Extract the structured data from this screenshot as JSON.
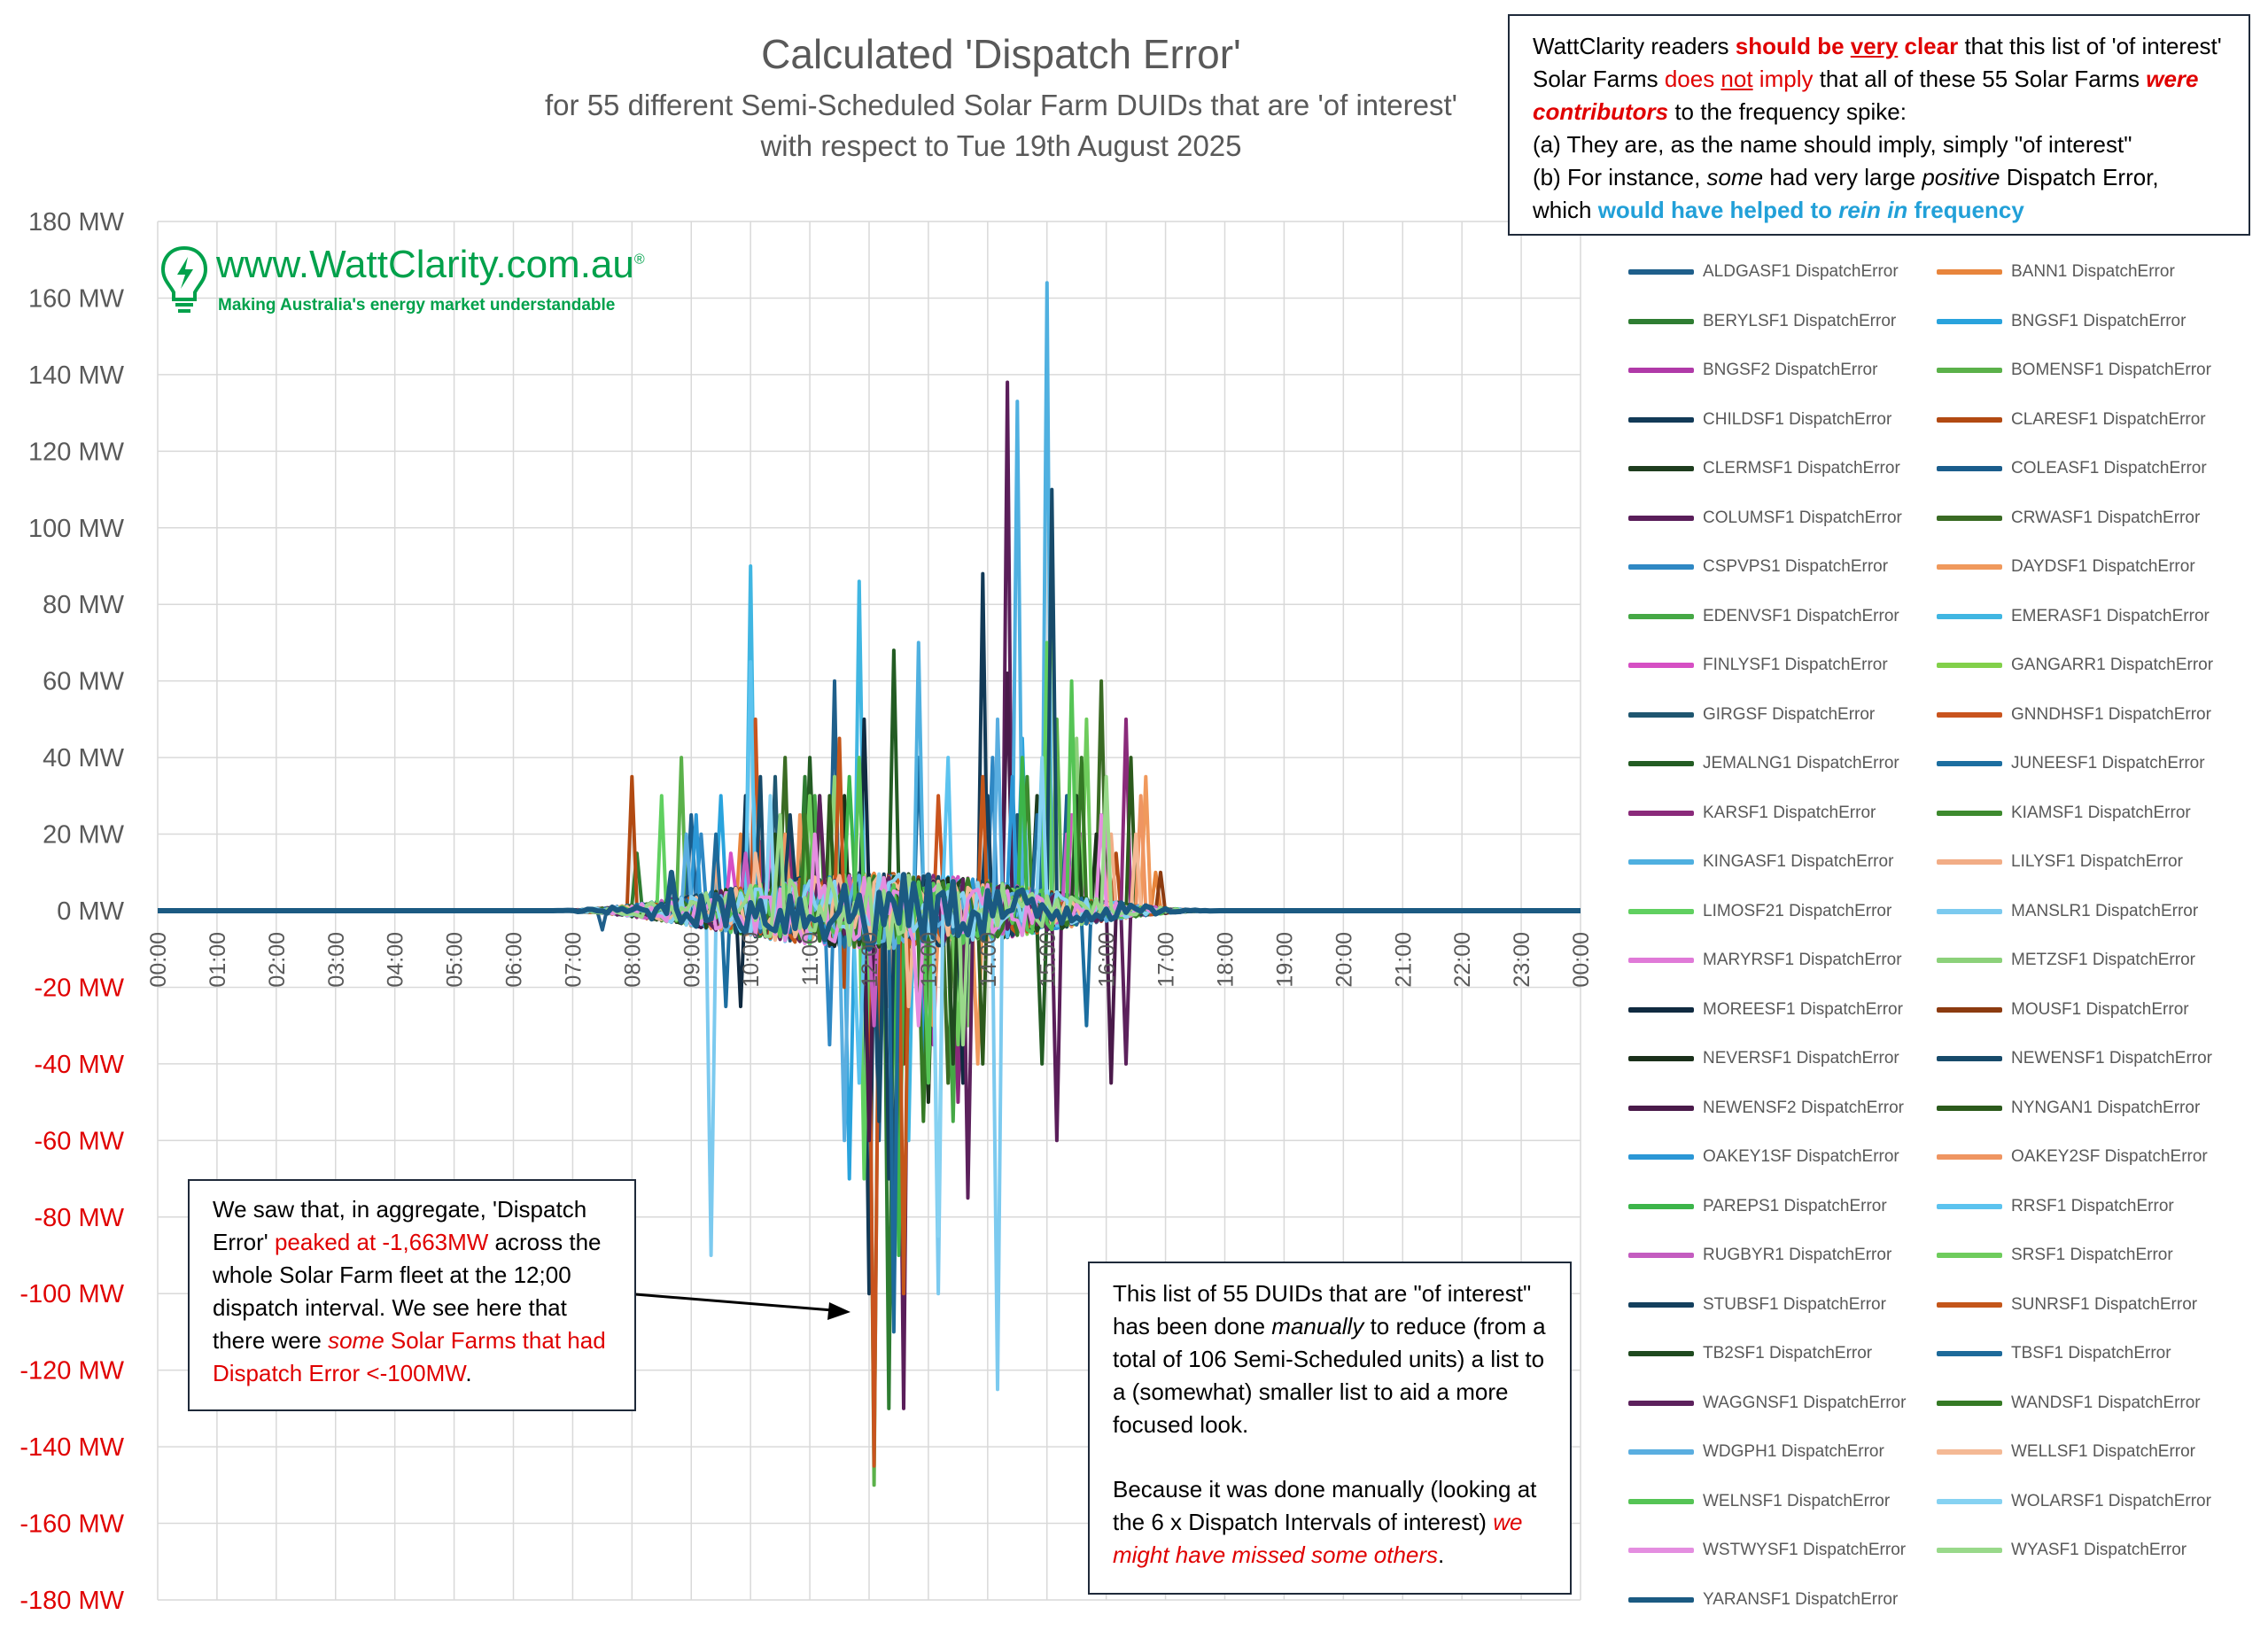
{
  "chart_data": {
    "type": "line",
    "title": "Calculated 'Dispatch Error'",
    "subtitle_lines": [
      "for 55 different Semi-Scheduled Solar Farm DUIDs that are 'of interest'",
      "with respect to Tue 19th August 2025"
    ],
    "ylim": [
      -180,
      180
    ],
    "y_ticks": [
      {
        "value": 180,
        "label": "180 MW"
      },
      {
        "value": 160,
        "label": "160 MW"
      },
      {
        "value": 140,
        "label": "140 MW"
      },
      {
        "value": 120,
        "label": "120 MW"
      },
      {
        "value": 100,
        "label": "100 MW"
      },
      {
        "value": 80,
        "label": "80 MW"
      },
      {
        "value": 60,
        "label": "60 MW"
      },
      {
        "value": 40,
        "label": "40 MW"
      },
      {
        "value": 20,
        "label": "20 MW"
      },
      {
        "value": 0,
        "label": "0 MW"
      },
      {
        "value": -20,
        "label": "-20 MW"
      },
      {
        "value": -40,
        "label": "-40 MW"
      },
      {
        "value": -60,
        "label": "-60 MW"
      },
      {
        "value": -80,
        "label": "-80 MW"
      },
      {
        "value": -100,
        "label": "-100 MW"
      },
      {
        "value": -120,
        "label": "-120 MW"
      },
      {
        "value": -140,
        "label": "-140 MW"
      },
      {
        "value": -160,
        "label": "-160 MW"
      },
      {
        "value": -180,
        "label": "-180 MW"
      }
    ],
    "negative_tick_color": "#e00000",
    "positive_tick_color": "#595959",
    "x_tick_labels": [
      "00:00",
      "01:00",
      "02:00",
      "03:00",
      "04:00",
      "05:00",
      "06:00",
      "07:00",
      "08:00",
      "09:00",
      "10:00",
      "11:00",
      "12:00",
      "13:00",
      "14:00",
      "15:00",
      "16:00",
      "17:00",
      "18:00",
      "19:00",
      "20:00",
      "21:00",
      "22:00",
      "23:00",
      "00:00"
    ],
    "x_hours_range": [
      0,
      24
    ],
    "active_window_hours": [
      6.5,
      18
    ],
    "grid": true,
    "legend_position": "right",
    "series": [
      {
        "name": "ALDGASF1 DispatchError",
        "color": "#1f5f8b",
        "peaks": [
          [
            7.5,
            -5
          ],
          [
            10.3,
            25
          ],
          [
            11.4,
            60
          ],
          [
            12.2,
            -40
          ]
        ]
      },
      {
        "name": "BANN1 DispatchError",
        "color": "#e8853c",
        "peaks": [
          [
            9.8,
            20
          ],
          [
            12.5,
            -30
          ],
          [
            16.8,
            10
          ]
        ]
      },
      {
        "name": "BERYLSF1 DispatchError",
        "color": "#2e7d32",
        "peaks": [
          [
            8.1,
            15
          ],
          [
            10.9,
            35
          ],
          [
            12.3,
            -130
          ]
        ]
      },
      {
        "name": "BNGSF1 DispatchError",
        "color": "#29a3dd",
        "peaks": [
          [
            9.5,
            30
          ],
          [
            11.7,
            -70
          ],
          [
            14.6,
            45
          ]
        ]
      },
      {
        "name": "BNGSF2 DispatchError",
        "color": "#b03aa8",
        "peaks": [
          [
            10.2,
            18
          ],
          [
            13.1,
            -35
          ],
          [
            15.6,
            20
          ]
        ]
      },
      {
        "name": "BOMENSF1 DispatchError",
        "color": "#5bb14a",
        "peaks": [
          [
            8.8,
            40
          ],
          [
            12.1,
            -150
          ],
          [
            15.2,
            50
          ]
        ]
      },
      {
        "name": "CHILDSF1 DispatchError",
        "color": "#123a57",
        "peaks": [
          [
            9.9,
            30
          ],
          [
            12.0,
            -100
          ],
          [
            13.9,
            88
          ]
        ]
      },
      {
        "name": "CLARESF1 DispatchError",
        "color": "#b24a12",
        "peaks": [
          [
            8.0,
            35
          ],
          [
            11.6,
            -20
          ],
          [
            16.2,
            15
          ]
        ]
      },
      {
        "name": "CLERMSF1 DispatchError",
        "color": "#1e3d1e",
        "peaks": [
          [
            10.5,
            20
          ],
          [
            12.7,
            -50
          ],
          [
            14.8,
            30
          ]
        ]
      },
      {
        "name": "COLEASF1 DispatchError",
        "color": "#1a5d8c",
        "peaks": [
          [
            9.0,
            25
          ],
          [
            12.2,
            -60
          ],
          [
            15.3,
            30
          ]
        ]
      },
      {
        "name": "COLUMSF1 DispatchError",
        "color": "#5a1e5a",
        "peaks": [
          [
            12.6,
            -130
          ],
          [
            14.3,
            138
          ],
          [
            15.2,
            -60
          ]
        ]
      },
      {
        "name": "CRWASF1 DispatchError",
        "color": "#3a6b24",
        "peaks": [
          [
            10.6,
            40
          ],
          [
            13.3,
            -45
          ],
          [
            15.9,
            60
          ]
        ]
      },
      {
        "name": "CSPVPS1 DispatchError",
        "color": "#2f88c4",
        "peaks": [
          [
            9.2,
            20
          ],
          [
            11.3,
            -35
          ],
          [
            14.1,
            40
          ]
        ]
      },
      {
        "name": "DAYDSF1 DispatchError",
        "color": "#f0995c",
        "peaks": [
          [
            10.8,
            25
          ],
          [
            13.8,
            -40
          ],
          [
            16.7,
            35
          ]
        ]
      },
      {
        "name": "EDENVSF1 DispatchError",
        "color": "#45a845",
        "peaks": [
          [
            11.1,
            30
          ],
          [
            13.4,
            -55
          ],
          [
            15.0,
            50
          ]
        ]
      },
      {
        "name": "EMERASF1 DispatchError",
        "color": "#40b6e2",
        "peaks": [
          [
            10.0,
            90
          ],
          [
            11.8,
            86
          ],
          [
            12.7,
            -60
          ]
        ]
      },
      {
        "name": "FINLYSF1 DispatchError",
        "color": "#d64fc4",
        "peaks": [
          [
            9.7,
            15
          ],
          [
            12.9,
            -30
          ],
          [
            15.4,
            25
          ]
        ]
      },
      {
        "name": "GANGARR1 DispatchError",
        "color": "#82d04a",
        "peaks": [
          [
            11.5,
            40
          ],
          [
            13.6,
            -35
          ],
          [
            15.1,
            102
          ]
        ]
      },
      {
        "name": "GIRGSF DispatchError",
        "color": "#1f5670",
        "peaks": [
          [
            10.4,
            35
          ],
          [
            12.4,
            -80
          ],
          [
            14.5,
            25
          ]
        ]
      },
      {
        "name": "GNNDHSF1 DispatchError",
        "color": "#c9541e",
        "peaks": [
          [
            10.1,
            50
          ],
          [
            12.1,
            -145
          ],
          [
            13.2,
            30
          ]
        ]
      },
      {
        "name": "JEMALNG1 DispatchError",
        "color": "#235c23",
        "peaks": [
          [
            11.0,
            40
          ],
          [
            12.4,
            68
          ],
          [
            14.9,
            -40
          ]
        ]
      },
      {
        "name": "JUNEESF1 DispatchError",
        "color": "#1c6ea0",
        "peaks": [
          [
            9.6,
            -25
          ],
          [
            12.8,
            40
          ],
          [
            15.7,
            -30
          ]
        ]
      },
      {
        "name": "KARSF1 DispatchError",
        "color": "#8a2a7a",
        "peaks": [
          [
            10.7,
            20
          ],
          [
            13.5,
            -50
          ],
          [
            16.3,
            50
          ]
        ]
      },
      {
        "name": "KIAMSF1 DispatchError",
        "color": "#3d8a2e",
        "peaks": [
          [
            11.2,
            30
          ],
          [
            12.5,
            -60
          ],
          [
            14.7,
            35
          ]
        ]
      },
      {
        "name": "KINGASF1 DispatchError",
        "color": "#4fb0e0",
        "peaks": [
          [
            12.8,
            70
          ],
          [
            14.5,
            133
          ],
          [
            15.0,
            164
          ]
        ]
      },
      {
        "name": "LILYSF1 DispatchError",
        "color": "#f2ad86",
        "peaks": [
          [
            9.4,
            15
          ],
          [
            12.3,
            -25
          ],
          [
            16.1,
            20
          ]
        ]
      },
      {
        "name": "LIMOSF21 DispatchError",
        "color": "#60d060",
        "peaks": [
          [
            8.5,
            30
          ],
          [
            11.9,
            -70
          ],
          [
            15.0,
            70
          ]
        ]
      },
      {
        "name": "MANSLR1 DispatchError",
        "color": "#7ccaef",
        "peaks": [
          [
            9.3,
            -90
          ],
          [
            13.2,
            -100
          ],
          [
            14.2,
            -125
          ]
        ]
      },
      {
        "name": "MARYRSF1 DispatchError",
        "color": "#e07ad8",
        "peaks": [
          [
            10.3,
            20
          ],
          [
            12.6,
            -35
          ],
          [
            16.0,
            25
          ]
        ]
      },
      {
        "name": "METZSF1 DispatchError",
        "color": "#8cd17a",
        "peaks": [
          [
            11.4,
            35
          ],
          [
            13.7,
            -30
          ],
          [
            15.5,
            45
          ]
        ]
      },
      {
        "name": "MOREESF1 DispatchError",
        "color": "#102a40",
        "peaks": [
          [
            9.8,
            -25
          ],
          [
            11.9,
            50
          ],
          [
            13.6,
            -45
          ]
        ]
      },
      {
        "name": "MOUSF1 DispatchError",
        "color": "#8c3b10",
        "peaks": [
          [
            10.9,
            25
          ],
          [
            12.6,
            -40
          ],
          [
            16.9,
            10
          ]
        ]
      },
      {
        "name": "NEVERSF1 DispatchError",
        "color": "#1a301a",
        "peaks": [
          [
            11.6,
            30
          ],
          [
            13.0,
            -50
          ],
          [
            15.8,
            20
          ]
        ]
      },
      {
        "name": "NEWENSF1 DispatchError",
        "color": "#174a6a",
        "peaks": [
          [
            10.2,
            35
          ],
          [
            12.2,
            -55
          ],
          [
            15.1,
            110
          ]
        ]
      },
      {
        "name": "NEWENSF2 DispatchError",
        "color": "#4a1a4a",
        "peaks": [
          [
            12.0,
            -60
          ],
          [
            14.3,
            62
          ],
          [
            16.1,
            -45
          ]
        ]
      },
      {
        "name": "NYNGAN1 DispatchError",
        "color": "#2c5a1c",
        "peaks": [
          [
            11.3,
            30
          ],
          [
            13.9,
            -40
          ],
          [
            16.4,
            40
          ]
        ]
      },
      {
        "name": "OAKEY1SF DispatchError",
        "color": "#2b97d6",
        "peaks": [
          [
            9.1,
            25
          ],
          [
            12.9,
            -45
          ],
          [
            14.4,
            35
          ]
        ]
      },
      {
        "name": "OAKEY2SF DispatchError",
        "color": "#ef9561",
        "peaks": [
          [
            10.6,
            20
          ],
          [
            13.1,
            -30
          ],
          [
            16.6,
            30
          ]
        ]
      },
      {
        "name": "PAREPS1 DispatchError",
        "color": "#3cb54a",
        "peaks": [
          [
            11.7,
            35
          ],
          [
            12.5,
            -90
          ],
          [
            14.6,
            40
          ]
        ]
      },
      {
        "name": "RRSF1 DispatchError",
        "color": "#5cc3ef",
        "peaks": [
          [
            10.0,
            65
          ],
          [
            11.8,
            -45
          ],
          [
            13.3,
            40
          ]
        ]
      },
      {
        "name": "RUGBYR1 DispatchError",
        "color": "#c45cc0",
        "peaks": [
          [
            9.9,
            15
          ],
          [
            12.1,
            -30
          ],
          [
            15.3,
            20
          ]
        ]
      },
      {
        "name": "SRSF1 DispatchError",
        "color": "#6ecc5c",
        "peaks": [
          [
            11.0,
            30
          ],
          [
            13.5,
            -35
          ],
          [
            15.7,
            50
          ]
        ]
      },
      {
        "name": "STUBSF1 DispatchError",
        "color": "#14405e",
        "peaks": [
          [
            10.7,
            25
          ],
          [
            12.3,
            -70
          ],
          [
            14.0,
            30
          ]
        ]
      },
      {
        "name": "SUNRSF1 DispatchError",
        "color": "#c4561a",
        "peaks": [
          [
            11.5,
            45
          ],
          [
            12.6,
            -100
          ],
          [
            13.9,
            35
          ]
        ]
      },
      {
        "name": "TB2SF1 DispatchError",
        "color": "#1f4a1f",
        "peaks": [
          [
            10.4,
            20
          ],
          [
            13.4,
            -40
          ],
          [
            15.5,
            30
          ]
        ]
      },
      {
        "name": "TBSF1 DispatchError",
        "color": "#1d6a9a",
        "peaks": [
          [
            9.4,
            20
          ],
          [
            12.4,
            -110
          ],
          [
            14.8,
            25
          ]
        ]
      },
      {
        "name": "WAGGNSF1 DispatchError",
        "color": "#5c215c",
        "peaks": [
          [
            11.2,
            30
          ],
          [
            13.7,
            -75
          ],
          [
            16.3,
            -40
          ]
        ]
      },
      {
        "name": "WANDSF1 DispatchError",
        "color": "#357a25",
        "peaks": [
          [
            10.9,
            25
          ],
          [
            12.9,
            -55
          ],
          [
            15.6,
            40
          ]
        ]
      },
      {
        "name": "WDGPH1 DispatchError",
        "color": "#5aaee0",
        "peaks": [
          [
            8.9,
            20
          ],
          [
            11.6,
            -60
          ],
          [
            14.2,
            50
          ]
        ]
      },
      {
        "name": "WELLSF1 DispatchError",
        "color": "#f4b995",
        "peaks": [
          [
            10.1,
            15
          ],
          [
            12.7,
            -25
          ],
          [
            16.5,
            20
          ]
        ]
      },
      {
        "name": "WELNSF1 DispatchError",
        "color": "#55c455",
        "peaks": [
          [
            11.8,
            40
          ],
          [
            13.0,
            -45
          ],
          [
            15.4,
            60
          ]
        ]
      },
      {
        "name": "WOLARSF1 DispatchError",
        "color": "#86d2f2",
        "peaks": [
          [
            10.3,
            30
          ],
          [
            13.2,
            -85
          ],
          [
            14.9,
            40
          ]
        ]
      },
      {
        "name": "WSTWYSF1 DispatchError",
        "color": "#e48ee0",
        "peaks": [
          [
            11.1,
            20
          ],
          [
            12.8,
            -30
          ],
          [
            15.9,
            25
          ]
        ]
      },
      {
        "name": "WYASF1 DispatchError",
        "color": "#99d98a",
        "peaks": [
          [
            10.5,
            25
          ],
          [
            13.6,
            -35
          ],
          [
            16.0,
            35
          ]
        ]
      },
      {
        "name": "YARANSF1 DispatchError",
        "color": "#1b5a82",
        "peaks": [
          [
            8.7,
            10
          ],
          [
            12.0,
            -10
          ],
          [
            14.2,
            5
          ]
        ]
      }
    ]
  },
  "logo": {
    "url_text": "www.WattClarity.com.au",
    "registered_mark": "®",
    "tagline": "Making Australia's energy market understandable",
    "color": "#00a14b"
  },
  "annotations": {
    "top": {
      "p1_a": "WattClarity readers ",
      "p1_b": "should be ",
      "p1_c": "very",
      "p1_d": " clear",
      "p1_e": " that this list of 'of interest' Solar Farms ",
      "p1_f": "does ",
      "p1_g": "not",
      "p1_h": " imply",
      "p1_i": " that all of these 55 Solar Farms ",
      "p1_j": "were",
      "p1_k": " contributors",
      "p1_l": " to the frequency spike:",
      "p2": "(a)  They are, as the name should imply, simply \"of interest\"",
      "p3_a": "(b)  For instance, ",
      "p3_b": "some",
      "p3_c": " had very large ",
      "p3_d": "positive",
      "p3_e": " Dispatch Error,",
      "p4_a": "which ",
      "p4_b": "would have helped to ",
      "p4_c": "rein in",
      "p4_d": " frequency"
    },
    "left": {
      "a": "We saw that, in aggregate, 'Dispatch Error' ",
      "b": "peaked at -1,663MW",
      "c": " across the whole Solar Farm fleet at the 12;00 dispatch interval.  We see here that there were ",
      "d": "some",
      "e": " Solar Farms that had Dispatch Error <-100MW",
      "f": "."
    },
    "bottom": {
      "p1_a": "This list of 55 DUIDs that are \"of interest\" has been done ",
      "p1_b": "manually",
      "p1_c": " to reduce (from a total of 106 Semi-Scheduled units) a list to a (somewhat) smaller list to aid a more focused look.",
      "p2_a": "Because it was done manually (looking at the 6 x Dispatch Intervals of interest) ",
      "p2_b": "we might have missed some others",
      "p2_c": "."
    }
  }
}
